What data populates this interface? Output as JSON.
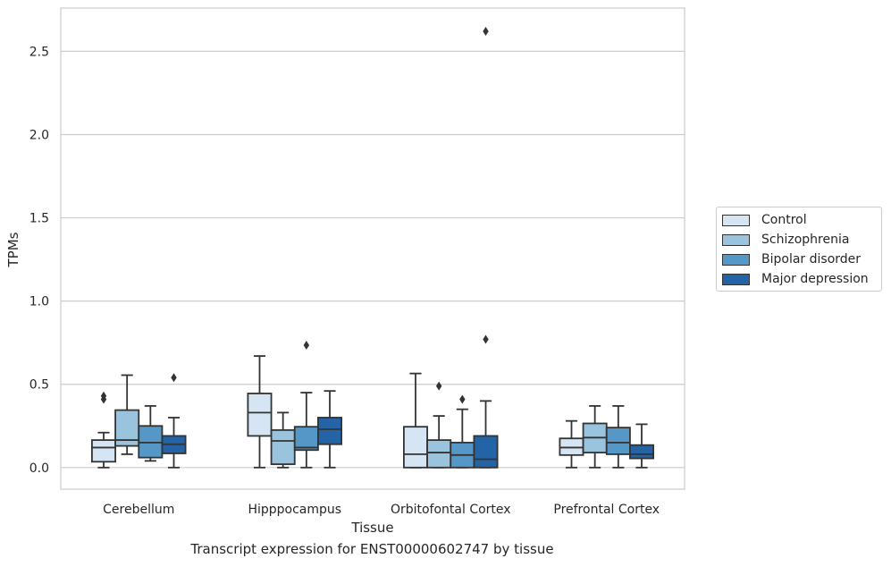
{
  "chart_data": {
    "type": "box",
    "caption": "Transcript expression for ENST00000602747 by tissue",
    "xlabel": "Tissue",
    "ylabel": "TPMs",
    "ylim": [
      -0.13,
      2.76
    ],
    "yticks": [
      0.0,
      0.5,
      1.0,
      1.5,
      2.0,
      2.5
    ],
    "ytick_labels": [
      "0.0",
      "0.5",
      "1.0",
      "1.5",
      "2.0",
      "2.5"
    ],
    "grid": "horizontal",
    "legend_position": "right",
    "categories": [
      "Cerebellum",
      "Hipppocampus",
      "Orbitofontal Cortex",
      "Prefrontal Cortex"
    ],
    "series": [
      {
        "name": "Control",
        "color": "#d6e5f3",
        "boxes": [
          {
            "whislo": 0.0,
            "q1": 0.035,
            "med": 0.12,
            "q3": 0.165,
            "whishi": 0.21,
            "fliers": [
              0.41,
              0.43
            ]
          },
          {
            "whislo": 0.0,
            "q1": 0.19,
            "med": 0.33,
            "q3": 0.445,
            "whishi": 0.67,
            "fliers": []
          },
          {
            "whislo": 0.0,
            "q1": 0.0,
            "med": 0.08,
            "q3": 0.245,
            "whishi": 0.565,
            "fliers": []
          },
          {
            "whislo": 0.0,
            "q1": 0.075,
            "med": 0.12,
            "q3": 0.175,
            "whishi": 0.28,
            "fliers": []
          }
        ]
      },
      {
        "name": "Schizophrenia",
        "color": "#9ac4dd",
        "boxes": [
          {
            "whislo": 0.08,
            "q1": 0.13,
            "med": 0.165,
            "q3": 0.345,
            "whishi": 0.555,
            "fliers": []
          },
          {
            "whislo": 0.0,
            "q1": 0.02,
            "med": 0.16,
            "q3": 0.225,
            "whishi": 0.33,
            "fliers": []
          },
          {
            "whislo": 0.0,
            "q1": 0.0,
            "med": 0.09,
            "q3": 0.165,
            "whishi": 0.31,
            "fliers": [
              0.49
            ]
          },
          {
            "whislo": 0.0,
            "q1": 0.09,
            "med": 0.18,
            "q3": 0.265,
            "whishi": 0.37,
            "fliers": []
          }
        ]
      },
      {
        "name": "Bipolar disorder",
        "color": "#5597c6",
        "boxes": [
          {
            "whislo": 0.04,
            "q1": 0.06,
            "med": 0.15,
            "q3": 0.25,
            "whishi": 0.37,
            "fliers": []
          },
          {
            "whislo": 0.0,
            "q1": 0.105,
            "med": 0.12,
            "q3": 0.245,
            "whishi": 0.45,
            "fliers": [
              0.735
            ]
          },
          {
            "whislo": 0.0,
            "q1": 0.0,
            "med": 0.075,
            "q3": 0.15,
            "whishi": 0.35,
            "fliers": [
              0.41
            ]
          },
          {
            "whislo": 0.0,
            "q1": 0.08,
            "med": 0.15,
            "q3": 0.24,
            "whishi": 0.37,
            "fliers": []
          }
        ]
      },
      {
        "name": "Major depression",
        "color": "#2463a6",
        "boxes": [
          {
            "whislo": 0.0,
            "q1": 0.085,
            "med": 0.14,
            "q3": 0.19,
            "whishi": 0.3,
            "fliers": [
              0.54
            ]
          },
          {
            "whislo": 0.0,
            "q1": 0.14,
            "med": 0.23,
            "q3": 0.3,
            "whishi": 0.46,
            "fliers": []
          },
          {
            "whislo": 0.0,
            "q1": 0.0,
            "med": 0.05,
            "q3": 0.19,
            "whishi": 0.4,
            "fliers": [
              0.77,
              2.62
            ]
          },
          {
            "whislo": 0.0,
            "q1": 0.055,
            "med": 0.08,
            "q3": 0.135,
            "whishi": 0.26,
            "fliers": []
          }
        ]
      }
    ]
  }
}
